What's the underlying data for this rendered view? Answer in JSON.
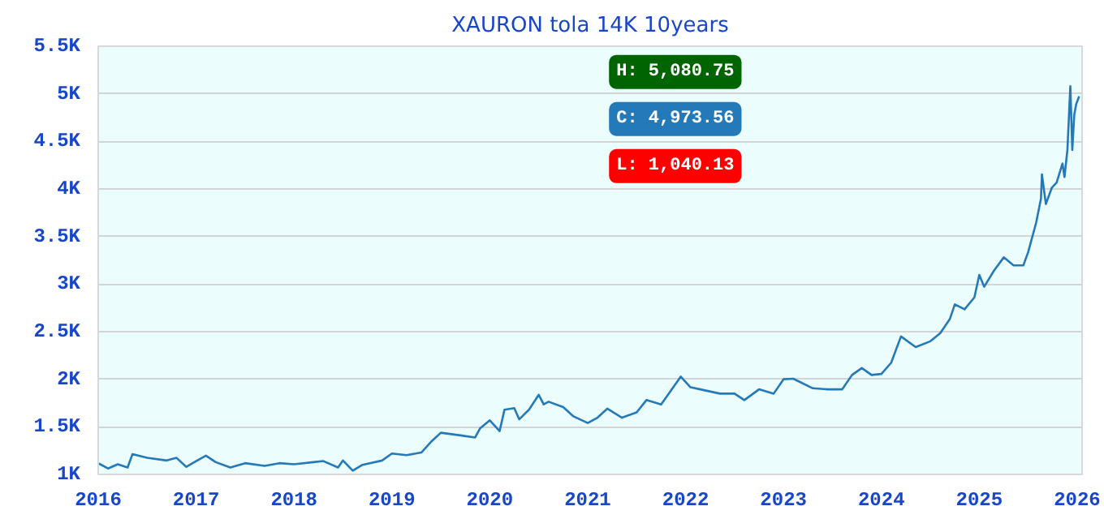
{
  "chart_data": {
    "type": "line",
    "title": "XAURON tola 14K 10years",
    "x": [
      2016.0,
      2016.1,
      2016.2,
      2016.3,
      2016.35,
      2016.5,
      2016.7,
      2016.8,
      2016.9,
      2017.0,
      2017.1,
      2017.2,
      2017.35,
      2017.5,
      2017.7,
      2017.85,
      2018.0,
      2018.2,
      2018.3,
      2018.45,
      2018.5,
      2018.6,
      2018.7,
      2018.9,
      2019.0,
      2019.15,
      2019.3,
      2019.4,
      2019.5,
      2019.7,
      2019.85,
      2019.9,
      2020.0,
      2020.1,
      2020.15,
      2020.25,
      2020.3,
      2020.4,
      2020.5,
      2020.55,
      2020.6,
      2020.75,
      2020.85,
      2021.0,
      2021.1,
      2021.2,
      2021.35,
      2021.5,
      2021.6,
      2021.75,
      2021.95,
      2022.05,
      2022.15,
      2022.35,
      2022.5,
      2022.6,
      2022.75,
      2022.9,
      2023.0,
      2023.1,
      2023.3,
      2023.45,
      2023.6,
      2023.7,
      2023.8,
      2023.9,
      2024.0,
      2024.1,
      2024.2,
      2024.35,
      2024.5,
      2024.6,
      2024.7,
      2024.75,
      2024.85,
      2024.95,
      2025.0,
      2025.05,
      2025.15,
      2025.25,
      2025.35,
      2025.45,
      2025.5,
      2025.52,
      2025.58,
      2025.63,
      2025.64,
      2025.68,
      2025.74,
      2025.79,
      2025.85,
      2025.87,
      2025.9,
      2025.93,
      2025.95,
      2025.97,
      2025.99,
      2026.02
    ],
    "series": [
      {
        "color": "#2479b8",
        "values": [
          1118,
          1062,
          1107,
          1073,
          1213,
          1174,
          1146,
          1174,
          1079,
          1140,
          1197,
          1129,
          1073,
          1118,
          1090,
          1118,
          1107,
          1129,
          1140,
          1073,
          1146,
          1040,
          1101,
          1146,
          1219,
          1202,
          1230,
          1343,
          1438,
          1410,
          1388,
          1483,
          1568,
          1455,
          1680,
          1697,
          1579,
          1680,
          1837,
          1736,
          1764,
          1708,
          1613,
          1540,
          1596,
          1691,
          1596,
          1652,
          1781,
          1736,
          2028,
          1916,
          1894,
          1849,
          1849,
          1781,
          1894,
          1849,
          2000,
          2006,
          1905,
          1894,
          1894,
          2045,
          2118,
          2045,
          2056,
          2174,
          2450,
          2338,
          2399,
          2483,
          2635,
          2787,
          2736,
          2860,
          3096,
          2972,
          3141,
          3281,
          3197,
          3197,
          3338,
          3415,
          3642,
          3898,
          4153,
          3841,
          4011,
          4068,
          4267,
          4125,
          4409,
          5080,
          4409,
          4778,
          4892,
          4973
        ]
      }
    ],
    "xlim": [
      2016.0,
      2026.05
    ],
    "xticks": [
      2016,
      2017,
      2018,
      2019,
      2020,
      2021,
      2022,
      2023,
      2024,
      2025,
      2026
    ],
    "ylim": [
      1000,
      5500
    ],
    "yticks": [
      {
        "value": 1000,
        "label": "1K"
      },
      {
        "value": 1500,
        "label": "1.5K"
      },
      {
        "value": 2000,
        "label": "2K"
      },
      {
        "value": 2500,
        "label": "2.5K"
      },
      {
        "value": 3000,
        "label": "3K"
      },
      {
        "value": 3500,
        "label": "3.5K"
      },
      {
        "value": 4000,
        "label": "4K"
      },
      {
        "value": 4500,
        "label": "4.5K"
      },
      {
        "value": 5000,
        "label": "5K"
      },
      {
        "value": 5500,
        "label": "5.5K"
      }
    ],
    "grid": "y",
    "annotations": [
      "H: 5,080.75",
      "C: 4,973.56",
      "L: 1,040.13"
    ]
  }
}
